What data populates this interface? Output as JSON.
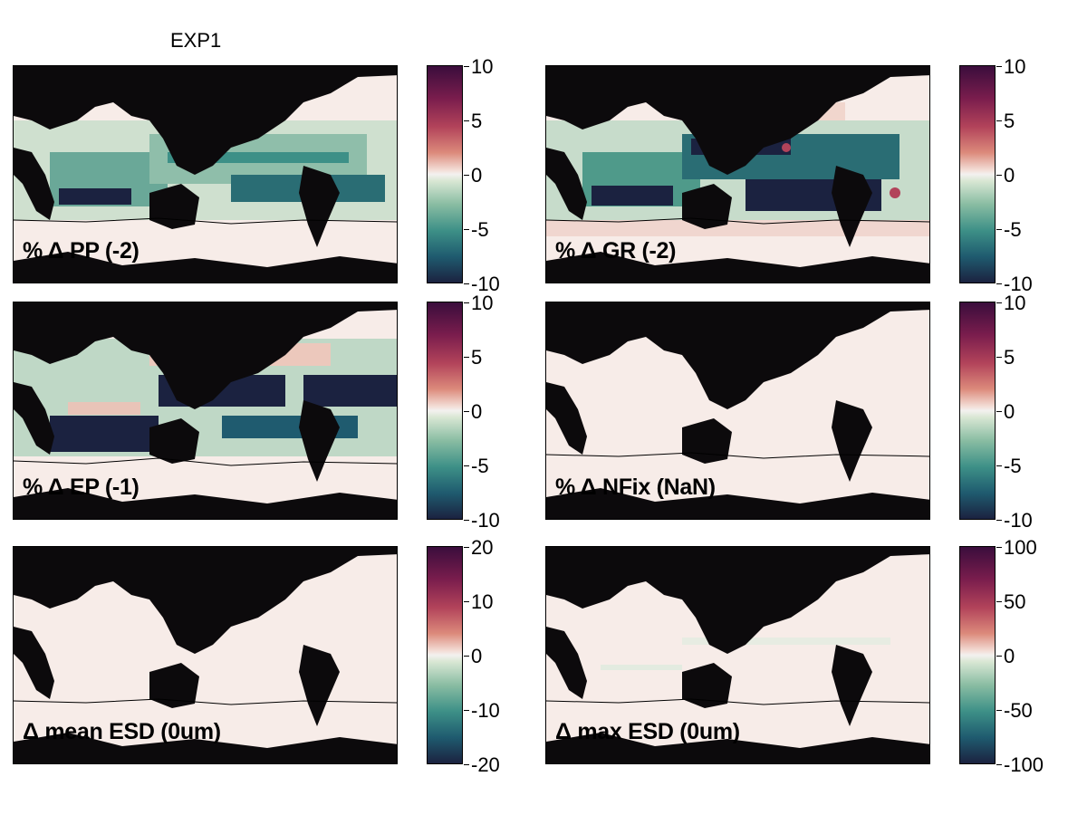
{
  "figure": {
    "title": "EXP1"
  },
  "panels": [
    {
      "label": "% Δ PP (-2)",
      "colorbar_ticks": [
        "10",
        "5",
        "0",
        "-5",
        "-10"
      ]
    },
    {
      "label": "% Δ GR (-2)",
      "colorbar_ticks": [
        "10",
        "5",
        "0",
        "-5",
        "-10"
      ]
    },
    {
      "label": "% Δ EP (-1)",
      "colorbar_ticks": [
        "10",
        "5",
        "0",
        "-5",
        "-10"
      ]
    },
    {
      "label": "% Δ NFix (NaN)",
      "colorbar_ticks": [
        "10",
        "5",
        "0",
        "-5",
        "-10"
      ]
    },
    {
      "label": "Δ mean ESD (0um)",
      "colorbar_ticks": [
        "20",
        "10",
        "0",
        "-10",
        "-20"
      ]
    },
    {
      "label": "Δ max ESD (0um)",
      "colorbar_ticks": [
        "100",
        "50",
        "0",
        "-50",
        "-100"
      ]
    }
  ],
  "colors": {
    "land": "#0c0a0c",
    "neutral_ocean": "#f7ece8",
    "positive_max": "#3a0d3c",
    "negative_max": "#1b2240",
    "negative_mid": "#2f8a7e"
  }
}
